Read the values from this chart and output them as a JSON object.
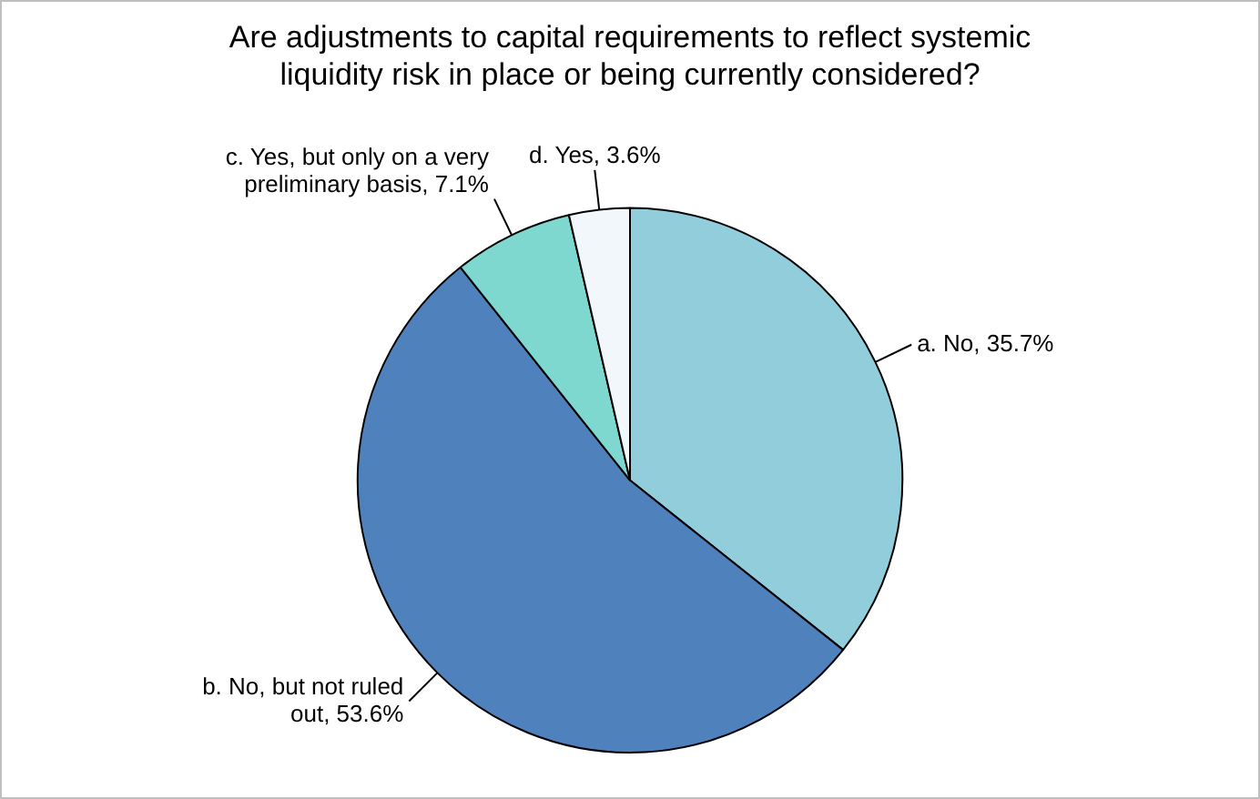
{
  "chart_data": {
    "type": "pie",
    "title": "Are adjustments to capital requirements to reflect systemic liquidity risk in place or being currently considered?",
    "categories": [
      "a. No",
      "b. No, but not ruled out",
      "c. Yes, but only on a very preliminary basis",
      "d. Yes"
    ],
    "value_labels": [
      "35.7%",
      "53.6%",
      "7.1%",
      "3.6%"
    ],
    "values": [
      35.7,
      53.6,
      7.1,
      3.6
    ],
    "colors": [
      "#92cddc",
      "#4f81bd",
      "#7fd8d0",
      "#f2f7fb"
    ],
    "legend": false
  }
}
